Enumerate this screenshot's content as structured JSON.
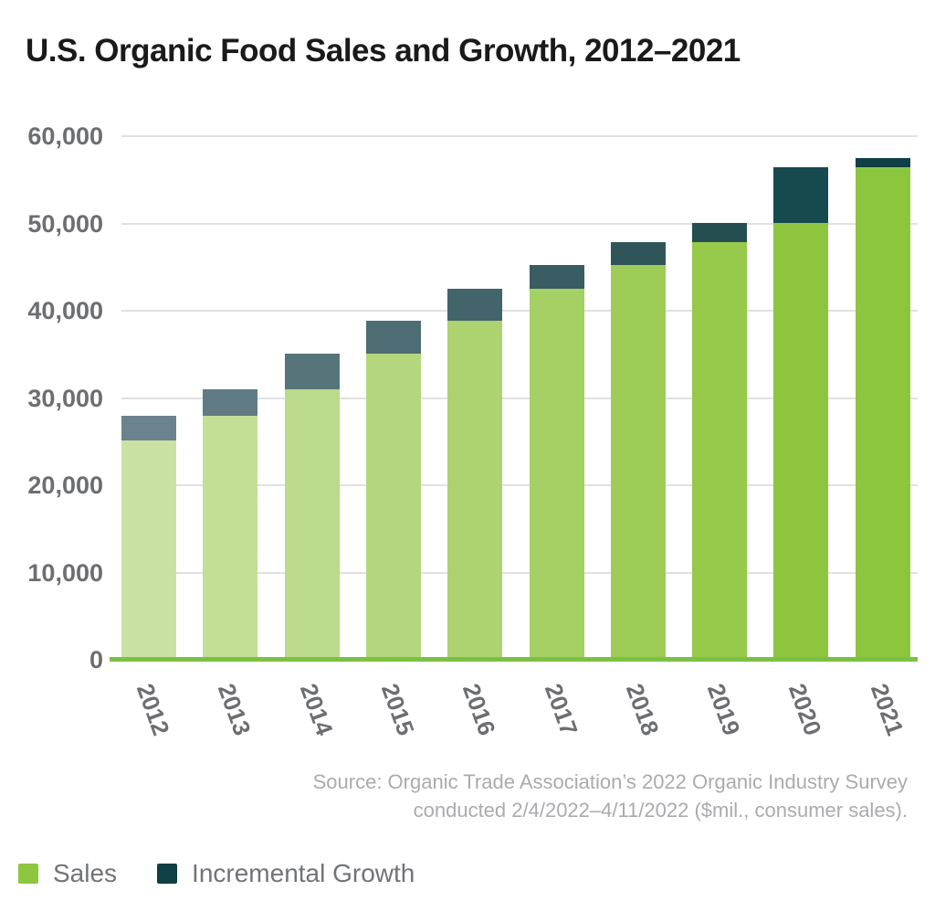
{
  "title": "U.S. Organic Food Sales and Growth, 2012–2021",
  "chart_data": {
    "type": "bar",
    "stacked": true,
    "title": "U.S. Organic Food Sales and Growth, 2012–2021",
    "categories": [
      "2012",
      "2013",
      "2014",
      "2015",
      "2016",
      "2017",
      "2018",
      "2019",
      "2020",
      "2021"
    ],
    "series": [
      {
        "name": "Sales",
        "values": [
          25150,
          27965,
          31000,
          35100,
          38800,
          42500,
          45200,
          47900,
          50100,
          56400
        ],
        "colors": [
          "#c9e2a4",
          "#c2de97",
          "#bbda8a",
          "#b4d77d",
          "#add371",
          "#a5d064",
          "#9ecd57",
          "#97c94a",
          "#8ec53e",
          "#8cc63e"
        ]
      },
      {
        "name": "Incremental Growth",
        "values": [
          2815,
          3035,
          4100,
          3700,
          3700,
          2700,
          2700,
          2200,
          6300,
          1100
        ],
        "colors": [
          "#6b838c",
          "#617b84",
          "#57747b",
          "#4d6c73",
          "#43646a",
          "#395d62",
          "#2f5559",
          "#254e51",
          "#174a4e",
          "#0e4046"
        ]
      }
    ],
    "totals": [
      27965,
      31000,
      35100,
      38800,
      42500,
      45200,
      47900,
      50100,
      56400,
      57500
    ],
    "xlabel": "",
    "ylabel": "",
    "ylim": [
      0,
      60000
    ],
    "ytick_step": 10000,
    "ytick_labels": [
      "0",
      "10,000",
      "20,000",
      "30,000",
      "40,000",
      "50,000",
      "60,000"
    ],
    "grid": true,
    "legend_position": "bottom-left",
    "units": "$mil., consumer sales",
    "baseline_color": "#7ac143",
    "gridline_color": "#e0e1e2"
  },
  "source": {
    "line1": "Source: Organic Trade Association’s 2022 Organic Industry Survey",
    "line2": "conducted 2/4/2022–4/11/2022 ($mil., consumer sales)."
  },
  "legend": {
    "items": [
      {
        "label": "Sales",
        "color": "#8dc63f"
      },
      {
        "label": "Incremental Growth",
        "color": "#0e4046"
      }
    ]
  }
}
